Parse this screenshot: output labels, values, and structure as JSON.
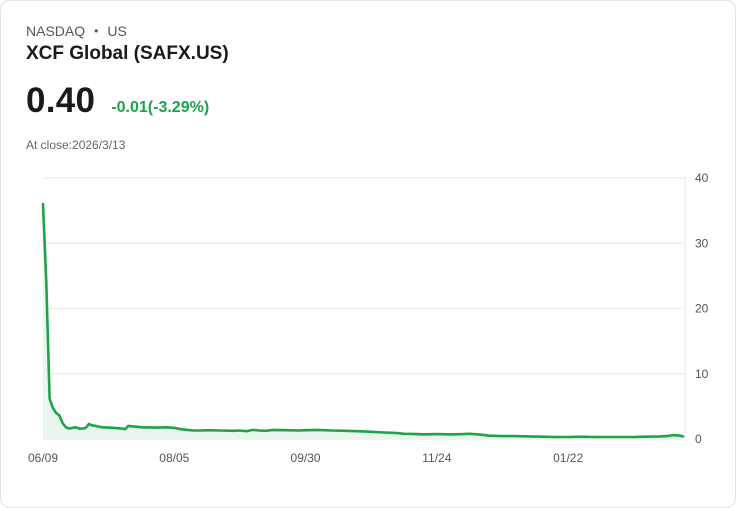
{
  "header": {
    "exchange": "NASDAQ",
    "separator": "•",
    "region": "US",
    "name": "XCF Global (SAFX.US)",
    "price": "0.40",
    "change": "-0.01(-3.29%)",
    "close_label": "At close:2026/3/13"
  },
  "colors": {
    "line": "#1fa34a",
    "fill": "#e9f6ee",
    "change": "#1fa34a",
    "grid": "#e6e6e6"
  },
  "chart_data": {
    "type": "area",
    "title": "XCF Global (SAFX.US)",
    "xlabel": "",
    "ylabel": "",
    "ylim": [
      0,
      40
    ],
    "yticks": [
      40,
      30,
      20,
      10,
      0
    ],
    "x_tick_labels": [
      "06/09",
      "08/05",
      "09/30",
      "11/24",
      "01/22"
    ],
    "x_tick_index": [
      0,
      40,
      80,
      120,
      160
    ],
    "n_points": 196,
    "grid": true,
    "series": [
      {
        "name": "Close",
        "points": [
          [
            0,
            36.0
          ],
          [
            1,
            24.0
          ],
          [
            2,
            6.2
          ],
          [
            3,
            4.8
          ],
          [
            4,
            4.0
          ],
          [
            5,
            3.6
          ],
          [
            6,
            2.4
          ],
          [
            7,
            1.8
          ],
          [
            8,
            1.6
          ],
          [
            9,
            1.7
          ],
          [
            10,
            1.8
          ],
          [
            11,
            1.6
          ],
          [
            12,
            1.6
          ],
          [
            13,
            1.7
          ],
          [
            14,
            2.3
          ],
          [
            15,
            2.1
          ],
          [
            16,
            2.0
          ],
          [
            17,
            1.9
          ],
          [
            18,
            1.8
          ],
          [
            20,
            1.75
          ],
          [
            22,
            1.7
          ],
          [
            24,
            1.6
          ],
          [
            25,
            1.5
          ],
          [
            26,
            2.0
          ],
          [
            28,
            1.9
          ],
          [
            30,
            1.8
          ],
          [
            34,
            1.75
          ],
          [
            38,
            1.8
          ],
          [
            40,
            1.7
          ],
          [
            42,
            1.5
          ],
          [
            44,
            1.4
          ],
          [
            46,
            1.3
          ],
          [
            48,
            1.3
          ],
          [
            50,
            1.35
          ],
          [
            54,
            1.3
          ],
          [
            58,
            1.25
          ],
          [
            60,
            1.3
          ],
          [
            62,
            1.2
          ],
          [
            64,
            1.4
          ],
          [
            66,
            1.3
          ],
          [
            68,
            1.25
          ],
          [
            70,
            1.4
          ],
          [
            74,
            1.35
          ],
          [
            78,
            1.3
          ],
          [
            80,
            1.35
          ],
          [
            84,
            1.4
          ],
          [
            88,
            1.3
          ],
          [
            92,
            1.25
          ],
          [
            96,
            1.2
          ],
          [
            100,
            1.1
          ],
          [
            104,
            1.0
          ],
          [
            108,
            0.9
          ],
          [
            110,
            0.8
          ],
          [
            114,
            0.75
          ],
          [
            116,
            0.7
          ],
          [
            120,
            0.75
          ],
          [
            124,
            0.7
          ],
          [
            128,
            0.75
          ],
          [
            130,
            0.8
          ],
          [
            134,
            0.65
          ],
          [
            136,
            0.5
          ],
          [
            140,
            0.45
          ],
          [
            144,
            0.45
          ],
          [
            148,
            0.4
          ],
          [
            152,
            0.35
          ],
          [
            156,
            0.3
          ],
          [
            160,
            0.3
          ],
          [
            164,
            0.35
          ],
          [
            168,
            0.3
          ],
          [
            172,
            0.3
          ],
          [
            176,
            0.3
          ],
          [
            180,
            0.3
          ],
          [
            184,
            0.35
          ],
          [
            188,
            0.4
          ],
          [
            190,
            0.45
          ],
          [
            192,
            0.6
          ],
          [
            194,
            0.5
          ],
          [
            195,
            0.4
          ]
        ]
      }
    ]
  }
}
